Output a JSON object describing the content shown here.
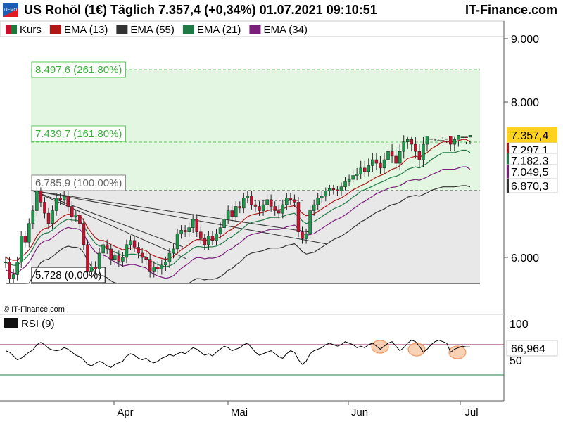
{
  "header": {
    "title": "US Rohöl (1€) Täglich 7.357,4 (+0,34%) 01.07.2021 09:10:51",
    "brand": "IT-Finance.com",
    "badge": "DEMO"
  },
  "legend": {
    "items": [
      {
        "label": "Kurs",
        "color": "#c8102e",
        "color2": "#1a7a3a"
      },
      {
        "label": "EMA (13)",
        "color": "#b01818"
      },
      {
        "label": "EMA (55)",
        "color": "#333333"
      },
      {
        "label": "EMA (21)",
        "color": "#1f7a45"
      },
      {
        "label": "EMA (34)",
        "color": "#7a1f7a"
      }
    ]
  },
  "copyright": "© IT-Finance.com",
  "rsi_label": "RSI (9)",
  "chart_data": [
    {
      "type": "candlestick",
      "title": "US Rohöl (1€) Täglich",
      "x_labels": [
        "Apr",
        "Mai",
        "Jun",
        "Jul"
      ],
      "y_ticks": [
        {
          "value": 9000,
          "label": "9.000"
        },
        {
          "value": 8000,
          "label": "8.000"
        },
        {
          "value": 6000,
          "label": "6.000"
        }
      ],
      "ylim": [
        5500,
        9400
      ],
      "grid": false,
      "last_price": {
        "value": 7357.4,
        "label": "7.357,4"
      },
      "ema_labels": [
        {
          "name": "EMA (13)",
          "value": 7297.1,
          "label": "7.297,1",
          "color": "#b01818"
        },
        {
          "name": "EMA (21)",
          "value": 7182.3,
          "label": "7.182,3",
          "color": "#1f7a45"
        },
        {
          "name": "EMA (34)",
          "value": 7049.5,
          "label": "7.049,5",
          "color": "#7a1f7a"
        },
        {
          "name": "EMA (55)",
          "value": 6870.3,
          "label": "6.870,3",
          "color": "#333333"
        }
      ],
      "fib_levels": [
        {
          "value": 8497.6,
          "label": "8.497,6 (261,80%)"
        },
        {
          "value": 7439.7,
          "label": "7.439,7 (161,80%)"
        },
        {
          "value": 6785.9,
          "label": "6.785,9 (100,00%)"
        },
        {
          "value": 5728,
          "label": "5.728 (0,00%)"
        }
      ],
      "close": [
        5.95,
        5.78,
        5.82,
        5.95,
        6.25,
        6.18,
        6.4,
        6.55,
        6.78,
        6.65,
        6.52,
        6.4,
        6.55,
        6.7,
        6.68,
        6.72,
        6.6,
        6.48,
        6.5,
        6.4,
        6.15,
        5.85,
        5.9,
        5.88,
        6.05,
        6.15,
        6.1,
        5.98,
        6.02,
        5.96,
        6.0,
        6.15,
        6.2,
        6.12,
        6.05,
        6.0,
        5.98,
        5.85,
        5.9,
        5.88,
        5.92,
        5.95,
        6.05,
        6.1,
        6.28,
        6.32,
        6.3,
        6.35,
        6.45,
        6.3,
        6.22,
        6.15,
        6.25,
        6.2,
        6.28,
        6.35,
        6.45,
        6.55,
        6.48,
        6.6,
        6.58,
        6.7,
        6.72,
        6.62,
        6.6,
        6.55,
        6.62,
        6.68,
        6.6,
        6.55,
        6.52,
        6.62,
        6.7,
        6.68,
        6.65,
        6.3,
        6.22,
        6.28,
        6.55,
        6.62,
        6.7,
        6.72,
        6.78,
        6.82,
        6.8,
        6.78,
        6.85,
        6.92,
        6.95,
        7.0,
        7.02,
        7.08,
        7.05,
        7.1,
        7.15,
        7.12,
        7.08,
        7.15,
        7.22,
        7.18,
        7.12,
        7.22,
        7.3,
        7.32,
        7.28,
        7.22,
        7.15,
        7.28,
        7.35,
        7.4,
        7.38,
        7.42,
        7.4,
        7.35,
        7.28,
        7.32,
        7.36,
        7.38,
        7.34,
        7.36
      ],
      "ema13": [
        6.0,
        5.98,
        5.97,
        5.97,
        6.01,
        6.04,
        6.09,
        6.16,
        6.25,
        6.31,
        6.34,
        6.35,
        6.38,
        6.42,
        6.46,
        6.49,
        6.51,
        6.5,
        6.5,
        6.49,
        6.44,
        6.35,
        6.29,
        6.23,
        6.2,
        6.2,
        6.18,
        6.15,
        6.13,
        6.11,
        6.09,
        6.1,
        6.11,
        6.11,
        6.1,
        6.09,
        6.08,
        6.04,
        6.02,
        6.0,
        5.99,
        5.98,
        5.99,
        6.01,
        6.05,
        6.09,
        6.12,
        6.15,
        6.19,
        6.21,
        6.21,
        6.2,
        6.21,
        6.21,
        6.22,
        6.24,
        6.27,
        6.31,
        6.33,
        6.37,
        6.4,
        6.44,
        6.48,
        6.5,
        6.51,
        6.52,
        6.53,
        6.55,
        6.56,
        6.56,
        6.56,
        6.57,
        6.59,
        6.6,
        6.61,
        6.57,
        6.52,
        6.49,
        6.5,
        6.51,
        6.54,
        6.57,
        6.6,
        6.63,
        6.66,
        6.68,
        6.7,
        6.73,
        6.76,
        6.8,
        6.83,
        6.87,
        6.89,
        6.92,
        6.95,
        6.98,
        7.0,
        7.02,
        7.05,
        7.07,
        7.08,
        7.1,
        7.13,
        7.16,
        7.17,
        7.18,
        7.17,
        7.19,
        7.21,
        7.24,
        7.26,
        7.28,
        7.3,
        7.3,
        7.3,
        7.3,
        7.31,
        7.32,
        7.32,
        7.3
      ]
    },
    {
      "type": "line",
      "title": "RSI (9)",
      "y_ticks": [
        {
          "value": 100,
          "label": "100"
        },
        {
          "value": 50,
          "label": "50"
        }
      ],
      "ylim": [
        28,
        108
      ],
      "levels": [
        70,
        30
      ],
      "last": {
        "value": 66.964,
        "label": "66,964"
      },
      "values": [
        62,
        60,
        55,
        50,
        52,
        56,
        60,
        63,
        70,
        73,
        70,
        65,
        63,
        62,
        63,
        66,
        64,
        60,
        56,
        54,
        50,
        44,
        42,
        45,
        48,
        46,
        42,
        40,
        44,
        46,
        48,
        55,
        58,
        56,
        52,
        50,
        52,
        48,
        46,
        48,
        52,
        54,
        57,
        55,
        58,
        60,
        58,
        62,
        66,
        64,
        60,
        56,
        58,
        55,
        60,
        64,
        68,
        66,
        62,
        64,
        66,
        70,
        72,
        66,
        60,
        56,
        58,
        60,
        62,
        58,
        54,
        52,
        58,
        62,
        60,
        50,
        44,
        48,
        58,
        62,
        64,
        66,
        70,
        72,
        70,
        68,
        70,
        74,
        72,
        70,
        66,
        68,
        66,
        70,
        72,
        68,
        64,
        68,
        72,
        74,
        68,
        62,
        66,
        72,
        76,
        74,
        68,
        60,
        64,
        70,
        74,
        76,
        74,
        72,
        60,
        64,
        66,
        68,
        67,
        67
      ]
    }
  ]
}
